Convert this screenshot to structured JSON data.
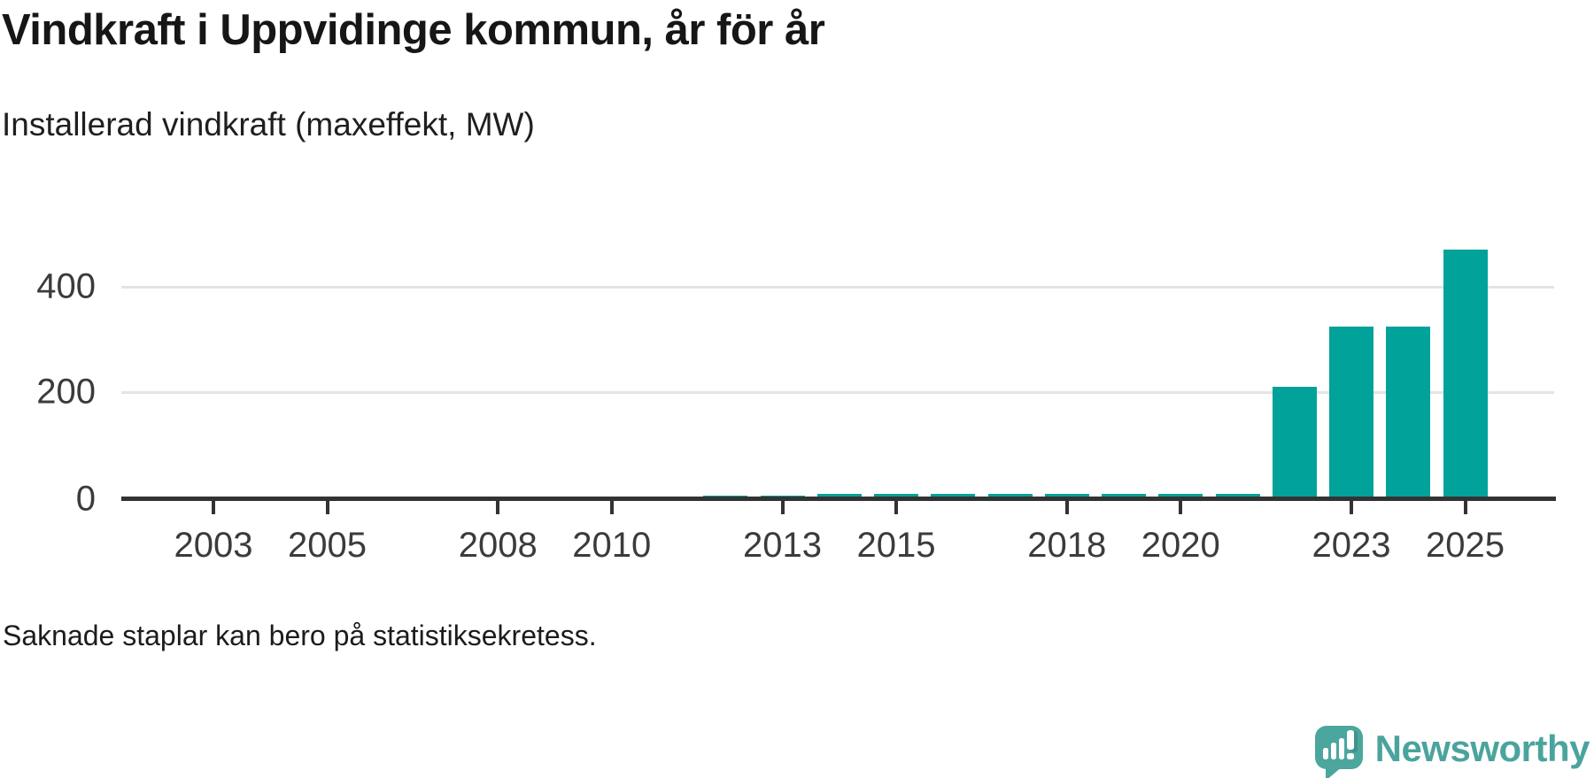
{
  "chart_data": {
    "type": "bar",
    "title": "Vindkraft i Uppvidinge kommun, år för år",
    "subtitle": "Installerad vindkraft (maxeffekt, MW)",
    "unit": "MW",
    "bar_color": "#00a29a",
    "grid": "horizontal",
    "legend": "none",
    "x_domain": [
      2002,
      2026
    ],
    "xticks": [
      2003,
      2005,
      2008,
      2010,
      2013,
      2015,
      2018,
      2020,
      2023,
      2025
    ],
    "yticks": [
      0,
      200,
      400
    ],
    "ylim": [
      0,
      490
    ],
    "missing_years": [
      2002,
      2003,
      2004,
      2005,
      2006,
      2007,
      2008,
      2009,
      2010,
      2011
    ],
    "series": [
      {
        "name": "Installerad vindkraft (maxeffekt, MW)",
        "points": [
          {
            "year": 2012,
            "value": 4
          },
          {
            "year": 2013,
            "value": 4
          },
          {
            "year": 2014,
            "value": 6
          },
          {
            "year": 2015,
            "value": 6
          },
          {
            "year": 2016,
            "value": 6
          },
          {
            "year": 2017,
            "value": 6
          },
          {
            "year": 2018,
            "value": 6
          },
          {
            "year": 2019,
            "value": 6
          },
          {
            "year": 2020,
            "value": 6
          },
          {
            "year": 2021,
            "value": 6
          },
          {
            "year": 2022,
            "value": 210
          },
          {
            "year": 2023,
            "value": 325
          },
          {
            "year": 2024,
            "value": 325
          },
          {
            "year": 2025,
            "value": 470
          }
        ]
      }
    ]
  },
  "footer": {
    "note": "Saknade staplar kan bero på statistiksekretess."
  },
  "branding": {
    "name": "Newsworthy",
    "logo_icon": "speech-bubble-bar-chart-icon",
    "logo_color": "#4ba69e"
  }
}
